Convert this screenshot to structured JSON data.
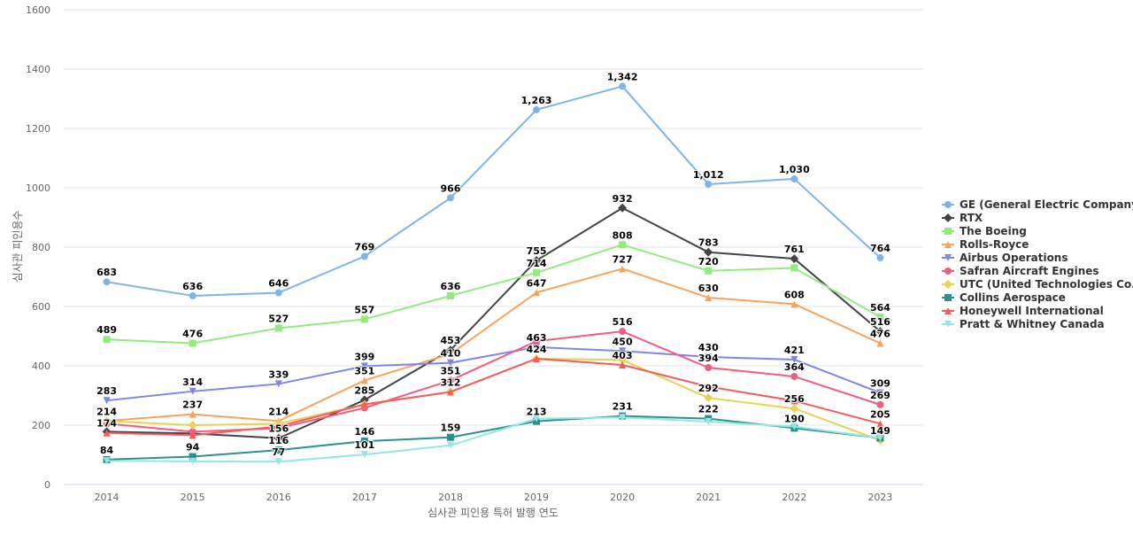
{
  "chart_data": {
    "type": "line",
    "title": "",
    "xlabel": "심사관 피인용 특허 발행 연도",
    "ylabel": "심사관 피인용수",
    "x": [
      "2014",
      "2015",
      "2016",
      "2017",
      "2018",
      "2019",
      "2020",
      "2021",
      "2022",
      "2023"
    ],
    "ylim": [
      0,
      1600
    ],
    "yticks": [
      0,
      200,
      400,
      600,
      800,
      1000,
      1200,
      1400,
      1600
    ],
    "grid": true,
    "legend_position": "right",
    "series": [
      {
        "name": "GE (General Electric Company)",
        "color": "#7cb5ec",
        "marker": "circle",
        "values": [
          683,
          636,
          646,
          769,
          966,
          1263,
          1342,
          1012,
          1030,
          764
        ],
        "labels": [
          "683",
          "636",
          "646",
          "769",
          "966",
          "1,263",
          "1,342",
          "1,012",
          "1,030",
          "764"
        ]
      },
      {
        "name": "RTX",
        "color": "#434348",
        "marker": "diamond",
        "values": [
          178,
          172,
          156,
          285,
          453,
          755,
          932,
          783,
          761,
          516
        ],
        "labels": [
          "",
          "",
          "156",
          "285",
          "453",
          "755",
          "932",
          "783",
          "761",
          "516"
        ]
      },
      {
        "name": "The Boeing",
        "color": "#90ed7d",
        "marker": "square",
        "values": [
          489,
          476,
          527,
          557,
          636,
          714,
          808,
          720,
          730,
          564
        ],
        "labels": [
          "489",
          "476",
          "527",
          "557",
          "636",
          "714",
          "808",
          "720",
          "",
          "564"
        ]
      },
      {
        "name": "Rolls-Royce",
        "color": "#f7a35c",
        "marker": "triangle",
        "values": [
          214,
          237,
          214,
          351,
          440,
          647,
          727,
          630,
          608,
          476
        ],
        "labels": [
          "214",
          "237",
          "214",
          "351",
          "",
          "647",
          "727",
          "630",
          "608",
          "476"
        ]
      },
      {
        "name": "Airbus Operations",
        "color": "#8085e9",
        "marker": "triangle-down",
        "values": [
          283,
          314,
          339,
          399,
          410,
          463,
          450,
          430,
          421,
          309
        ],
        "labels": [
          "283",
          "314",
          "339",
          "399",
          "410",
          "463",
          "450",
          "430",
          "421",
          "309"
        ]
      },
      {
        "name": "Safran Aircraft Engines",
        "color": "#f15c80",
        "marker": "circle",
        "values": [
          205,
          178,
          190,
          258,
          351,
          483,
          516,
          394,
          364,
          269
        ],
        "labels": [
          "",
          "",
          "",
          "",
          "351",
          "",
          "516",
          "394",
          "364",
          "269"
        ]
      },
      {
        "name": "UTC (United Technologies Co...",
        "color": "#e4d354",
        "marker": "diamond",
        "values": [
          214,
          200,
          205,
          270,
          312,
          424,
          420,
          292,
          256,
          149
        ],
        "labels": [
          "",
          "",
          "",
          "",
          "",
          "",
          "",
          "292",
          "256",
          "149"
        ]
      },
      {
        "name": "Collins Aerospace",
        "color": "#2b908f",
        "marker": "square",
        "values": [
          84,
          94,
          116,
          146,
          159,
          213,
          231,
          222,
          190,
          157
        ],
        "labels": [
          "84",
          "94",
          "116",
          "146",
          "159",
          "213",
          "231",
          "222",
          "190",
          ""
        ]
      },
      {
        "name": "Honeywell International",
        "color": "#f45b5b",
        "marker": "triangle",
        "values": [
          174,
          166,
          196,
          270,
          312,
          424,
          403,
          330,
          282,
          205
        ],
        "labels": [
          "174",
          "",
          "",
          "",
          "312",
          "424",
          "403",
          "",
          "",
          "205"
        ]
      },
      {
        "name": "Pratt & Whitney Canada",
        "color": "#91e8e1",
        "marker": "triangle-down",
        "values": [
          80,
          78,
          77,
          101,
          132,
          222,
          226,
          212,
          195,
          157
        ],
        "labels": [
          "",
          "",
          "77",
          "101",
          "",
          "",
          "",
          "",
          "",
          ""
        ]
      }
    ]
  }
}
